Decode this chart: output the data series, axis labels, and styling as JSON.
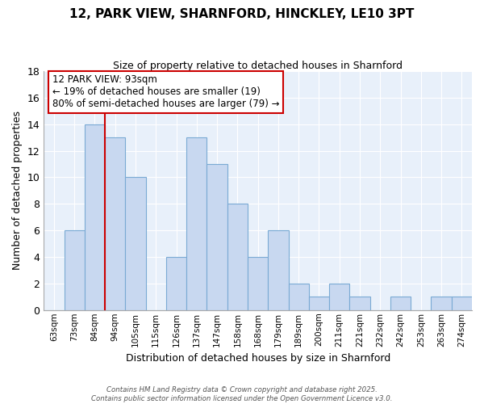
{
  "title": "12, PARK VIEW, SHARNFORD, HINCKLEY, LE10 3PT",
  "subtitle": "Size of property relative to detached houses in Sharnford",
  "xlabel": "Distribution of detached houses by size in Sharnford",
  "ylabel": "Number of detached properties",
  "bin_labels": [
    "63sqm",
    "73sqm",
    "84sqm",
    "94sqm",
    "105sqm",
    "115sqm",
    "126sqm",
    "137sqm",
    "147sqm",
    "158sqm",
    "168sqm",
    "179sqm",
    "189sqm",
    "200sqm",
    "211sqm",
    "221sqm",
    "232sqm",
    "242sqm",
    "253sqm",
    "263sqm",
    "274sqm"
  ],
  "bar_heights": [
    0,
    6,
    14,
    13,
    10,
    0,
    4,
    13,
    11,
    8,
    4,
    6,
    2,
    1,
    2,
    1,
    0,
    1,
    0,
    1,
    1
  ],
  "bar_color": "#c8d8f0",
  "bar_edge_color": "#7aaad4",
  "grid_color": "#c8d8f0",
  "background_color": "#e8f0fa",
  "ylim": [
    0,
    18
  ],
  "yticks": [
    0,
    2,
    4,
    6,
    8,
    10,
    12,
    14,
    16,
    18
  ],
  "vline_bar_index": 3,
  "vline_color": "#cc0000",
  "annotation_line1": "12 PARK VIEW: 93sqm",
  "annotation_line2": "← 19% of detached houses are smaller (19)",
  "annotation_line3": "80% of semi-detached houses are larger (79) →",
  "footer_line1": "Contains HM Land Registry data © Crown copyright and database right 2025.",
  "footer_line2": "Contains public sector information licensed under the Open Government Licence v3.0."
}
